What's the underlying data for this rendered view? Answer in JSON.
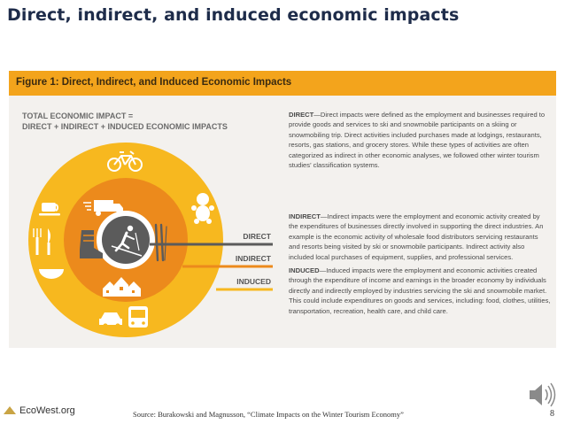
{
  "slide": {
    "title": "Direct, indirect, and induced economic impacts",
    "page_number": "8",
    "source": "Source:  Burakowski and Magnusson, “Climate Impacts on the Winter Tourism Economy”",
    "logo_text": "EcoWest.org"
  },
  "figure": {
    "heading": "Figure 1: Direct, Indirect, and Induced Economic Impacts",
    "impact_line1": "TOTAL ECONOMIC IMPACT =",
    "impact_line2": "DIRECT + INDIRECT + INDUCED ECONOMIC IMPACTS",
    "ring_labels": {
      "direct": "DIRECT",
      "indirect": "INDIRECT",
      "induced": "INDUCED"
    },
    "colors": {
      "header": "#f3a41c",
      "outer_ring": "#f7b81f",
      "middle_ring": "#ec8a1c",
      "inner_ring": "#ffffff",
      "center": "#5b5b5b",
      "direct_line": "#5b5b5b",
      "indirect_line": "#ec8a1c",
      "induced_line": "#f7b81f"
    },
    "icons": [
      "bicycle-icon",
      "coffee-cup-icon",
      "fork-knife-icon",
      "bowl-icon",
      "delivery-truck-icon",
      "ski-boot-icon",
      "skis-icon",
      "baby-icon",
      "skier-icon",
      "houses-icon",
      "car-icon",
      "bus-icon"
    ],
    "definitions": {
      "direct_term": "DIRECT",
      "direct_text": "—Direct impacts were defined as the employment and businesses required to provide goods and services to ski and snowmobile participants on a skiing or snowmobiling trip. Direct activities included purchases made at lodgings, restaurants, resorts, gas stations, and grocery stores. While these types of activities are often categorized as indirect in other economic analyses, we followed other winter tourism studies’ classification systems.",
      "indirect_term": "INDIRECT",
      "indirect_text": "—Indirect impacts were the employment and economic activity created by the expenditures of businesses directly involved in supporting the direct industries. An example is the economic activity of wholesale food distributors servicing restaurants and resorts being visited by ski or snowmobile participants. Indirect activity also included local purchases of equipment, supplies, and professional services.",
      "induced_term": "INDUCED",
      "induced_text": "—Induced impacts were the employment and economic activities created through the expenditure of income and earnings in the broader economy by individuals directly and indirectly employed by industries servicing the ski and snowmobile market. This could include expenditures on goods and services, including: food, clothes, utilities, transportation, recreation, health care, and child care."
    }
  }
}
